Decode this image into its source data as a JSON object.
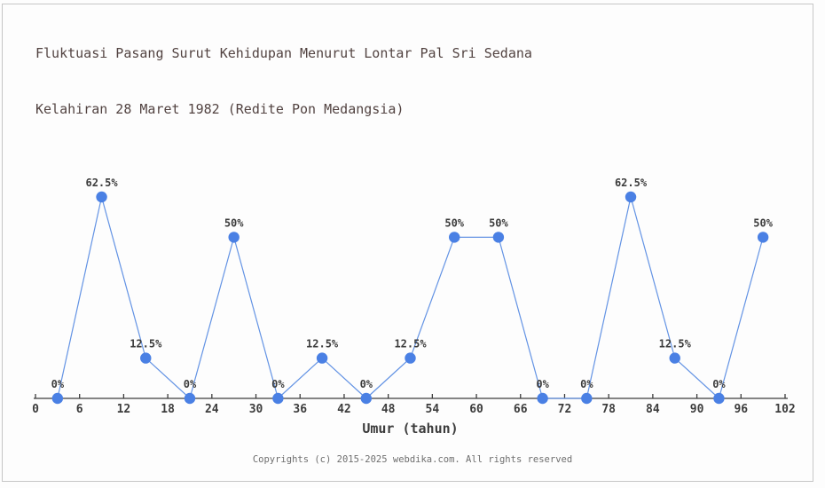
{
  "page": {
    "title_line1": "Fluktuasi Pasang Surut Kehidupan Menurut Lontar Pal Sri Sedana",
    "title_line2": "Kelahiran 28 Maret 1982 (Redite Pon Medangsia)",
    "footer": "Copyrights (c) 2015-2025 webdika.com. All rights reserved"
  },
  "chart_data": {
    "type": "line",
    "title": "Fluktuasi Pasang Surut Kehidupan Menurut Lontar Pal Sri Sedana Kelahiran 28 Maret 1982 (Redite Pon Medangsia)",
    "xlabel": "Umur (tahun)",
    "ylabel": "",
    "x": [
      3,
      9,
      15,
      21,
      27,
      33,
      39,
      45,
      51,
      57,
      63,
      69,
      75,
      81,
      87,
      93,
      99
    ],
    "values": [
      0,
      62.5,
      12.5,
      0,
      50,
      0,
      12.5,
      0,
      12.5,
      50,
      50,
      0,
      0,
      62.5,
      12.5,
      0,
      50
    ],
    "point_labels": [
      "0%",
      "62.5%",
      "12.5%",
      "0%",
      "50%",
      "0%",
      "12.5%",
      "0%",
      "12.5%",
      "50%",
      "50%",
      "0%",
      "0%",
      "62.5%",
      "12.5%",
      "0%",
      "50%"
    ],
    "xticks": [
      0,
      6,
      12,
      18,
      24,
      30,
      36,
      42,
      48,
      54,
      60,
      66,
      72,
      78,
      84,
      90,
      96,
      102
    ],
    "xlim": [
      0,
      102
    ],
    "ylim": [
      0,
      100
    ],
    "grid": false,
    "legend": null,
    "colors": {
      "line": "#6393e4",
      "marker": "#4a80e4",
      "axis": "#3c3c3c",
      "text": "#3c3c3c",
      "title": "#524341",
      "footer": "#6e6e6e"
    }
  }
}
